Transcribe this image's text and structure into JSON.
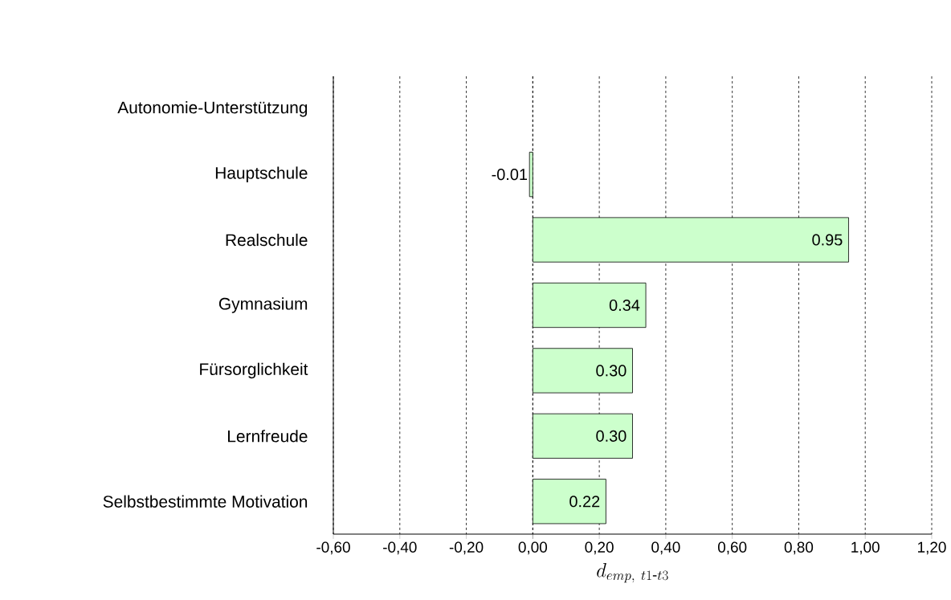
{
  "chart_data": {
    "type": "bar",
    "orientation": "horizontal",
    "categories": [
      "Autonomie-Unterstützung",
      "Hauptschule",
      "Realschule",
      "Gymnasium",
      "Fürsorglichkeit",
      "Lernfreude",
      "Selbstbestimmte Motivation"
    ],
    "values": [
      null,
      -0.01,
      0.95,
      0.34,
      0.3,
      0.3,
      0.22
    ],
    "value_labels": [
      null,
      "-0.01",
      "0.95",
      "0.34",
      "0.30",
      "0.30",
      "0.22"
    ],
    "color": "#ccffcc",
    "xlabel": "d_{emp,\\ t1\\text{-}t3}",
    "xlim": [
      -0.6,
      1.2
    ],
    "xticks": [
      {
        "value": -0.6,
        "label": "-0,60"
      },
      {
        "value": -0.4,
        "label": "-0,40"
      },
      {
        "value": -0.2,
        "label": "-0,20"
      },
      {
        "value": 0,
        "label": "0,00"
      },
      {
        "value": 0.2,
        "label": "0,20"
      },
      {
        "value": 0.4,
        "label": "0,40"
      },
      {
        "value": 0.6,
        "label": "0,60"
      },
      {
        "value": 0.8,
        "label": "0,80"
      },
      {
        "value": 1.0,
        "label": "1,00"
      },
      {
        "value": 1.2,
        "label": "1,20"
      }
    ],
    "grid": "x"
  }
}
